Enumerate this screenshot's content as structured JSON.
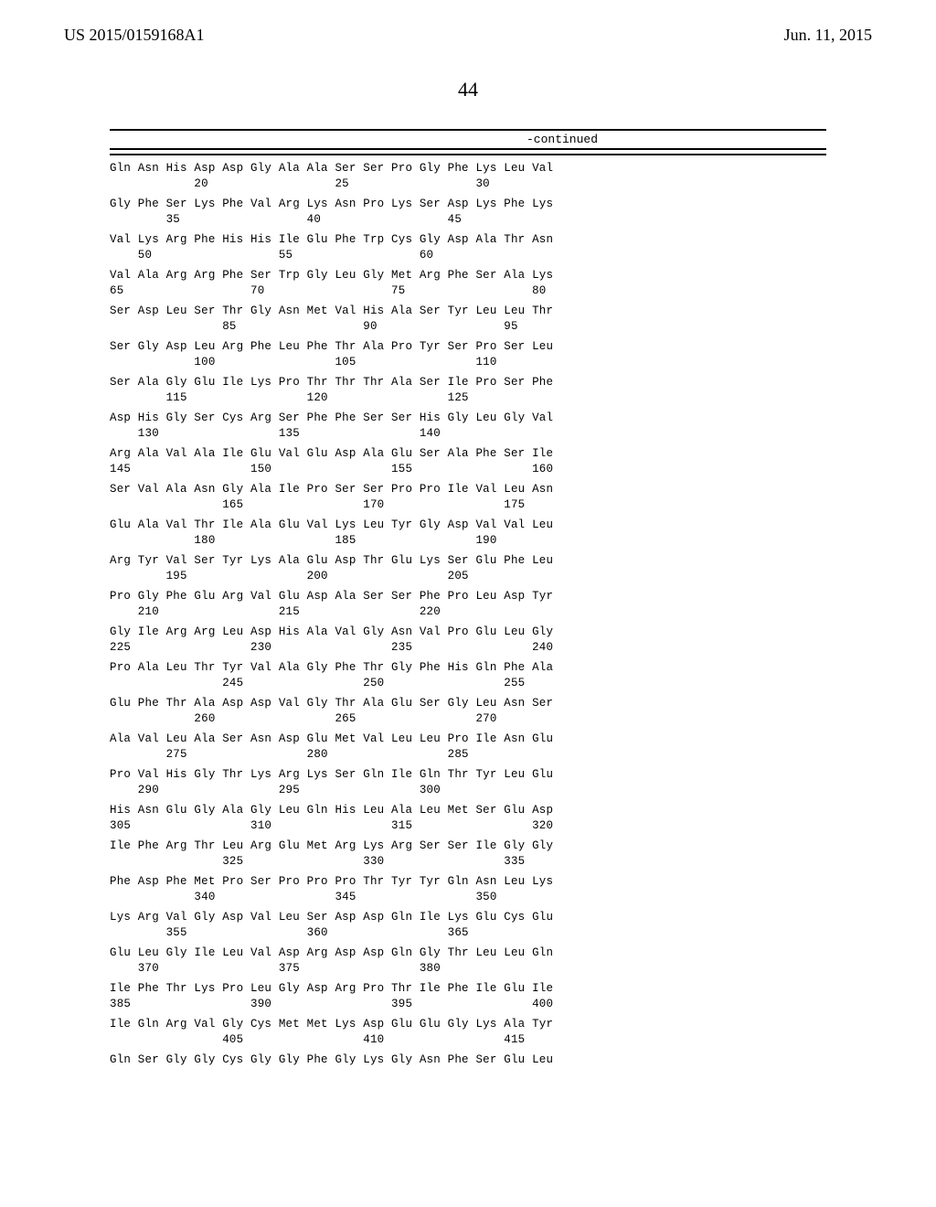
{
  "header": {
    "left": "US 2015/0159168A1",
    "right": "Jun. 11, 2015"
  },
  "page_number": "44",
  "continued_label": "-continued",
  "sequence": {
    "font_family": "Courier New",
    "font_size_pt": 9,
    "text_color": "#000000",
    "background_color": "#ffffff",
    "rule_color": "#000000",
    "rows": [
      {
        "aa": "Gln Asn His Asp Asp Gly Ala Ala Ser Ser Pro Gly Phe Lys Leu Val",
        "pos": "            20                  25                  30"
      },
      {
        "aa": "Gly Phe Ser Lys Phe Val Arg Lys Asn Pro Lys Ser Asp Lys Phe Lys",
        "pos": "        35                  40                  45"
      },
      {
        "aa": "Val Lys Arg Phe His His Ile Glu Phe Trp Cys Gly Asp Ala Thr Asn",
        "pos": "    50                  55                  60"
      },
      {
        "aa": "Val Ala Arg Arg Phe Ser Trp Gly Leu Gly Met Arg Phe Ser Ala Lys",
        "pos": "65                  70                  75                  80"
      },
      {
        "aa": "Ser Asp Leu Ser Thr Gly Asn Met Val His Ala Ser Tyr Leu Leu Thr",
        "pos": "                85                  90                  95"
      },
      {
        "aa": "Ser Gly Asp Leu Arg Phe Leu Phe Thr Ala Pro Tyr Ser Pro Ser Leu",
        "pos": "            100                 105                 110"
      },
      {
        "aa": "Ser Ala Gly Glu Ile Lys Pro Thr Thr Thr Ala Ser Ile Pro Ser Phe",
        "pos": "        115                 120                 125"
      },
      {
        "aa": "Asp His Gly Ser Cys Arg Ser Phe Phe Ser Ser His Gly Leu Gly Val",
        "pos": "    130                 135                 140"
      },
      {
        "aa": "Arg Ala Val Ala Ile Glu Val Glu Asp Ala Glu Ser Ala Phe Ser Ile",
        "pos": "145                 150                 155                 160"
      },
      {
        "aa": "Ser Val Ala Asn Gly Ala Ile Pro Ser Ser Pro Pro Ile Val Leu Asn",
        "pos": "                165                 170                 175"
      },
      {
        "aa": "Glu Ala Val Thr Ile Ala Glu Val Lys Leu Tyr Gly Asp Val Val Leu",
        "pos": "            180                 185                 190"
      },
      {
        "aa": "Arg Tyr Val Ser Tyr Lys Ala Glu Asp Thr Glu Lys Ser Glu Phe Leu",
        "pos": "        195                 200                 205"
      },
      {
        "aa": "Pro Gly Phe Glu Arg Val Glu Asp Ala Ser Ser Phe Pro Leu Asp Tyr",
        "pos": "    210                 215                 220"
      },
      {
        "aa": "Gly Ile Arg Arg Leu Asp His Ala Val Gly Asn Val Pro Glu Leu Gly",
        "pos": "225                 230                 235                 240"
      },
      {
        "aa": "Pro Ala Leu Thr Tyr Val Ala Gly Phe Thr Gly Phe His Gln Phe Ala",
        "pos": "                245                 250                 255"
      },
      {
        "aa": "Glu Phe Thr Ala Asp Asp Val Gly Thr Ala Glu Ser Gly Leu Asn Ser",
        "pos": "            260                 265                 270"
      },
      {
        "aa": "Ala Val Leu Ala Ser Asn Asp Glu Met Val Leu Leu Pro Ile Asn Glu",
        "pos": "        275                 280                 285"
      },
      {
        "aa": "Pro Val His Gly Thr Lys Arg Lys Ser Gln Ile Gln Thr Tyr Leu Glu",
        "pos": "    290                 295                 300"
      },
      {
        "aa": "His Asn Glu Gly Ala Gly Leu Gln His Leu Ala Leu Met Ser Glu Asp",
        "pos": "305                 310                 315                 320"
      },
      {
        "aa": "Ile Phe Arg Thr Leu Arg Glu Met Arg Lys Arg Ser Ser Ile Gly Gly",
        "pos": "                325                 330                 335"
      },
      {
        "aa": "Phe Asp Phe Met Pro Ser Pro Pro Pro Thr Tyr Tyr Gln Asn Leu Lys",
        "pos": "            340                 345                 350"
      },
      {
        "aa": "Lys Arg Val Gly Asp Val Leu Ser Asp Asp Gln Ile Lys Glu Cys Glu",
        "pos": "        355                 360                 365"
      },
      {
        "aa": "Glu Leu Gly Ile Leu Val Asp Arg Asp Asp Gln Gly Thr Leu Leu Gln",
        "pos": "    370                 375                 380"
      },
      {
        "aa": "Ile Phe Thr Lys Pro Leu Gly Asp Arg Pro Thr Ile Phe Ile Glu Ile",
        "pos": "385                 390                 395                 400"
      },
      {
        "aa": "Ile Gln Arg Val Gly Cys Met Met Lys Asp Glu Glu Gly Lys Ala Tyr",
        "pos": "                405                 410                 415"
      },
      {
        "aa": "Gln Ser Gly Gly Cys Gly Gly Phe Gly Lys Gly Asn Phe Ser Glu Leu",
        "pos": ""
      }
    ]
  }
}
